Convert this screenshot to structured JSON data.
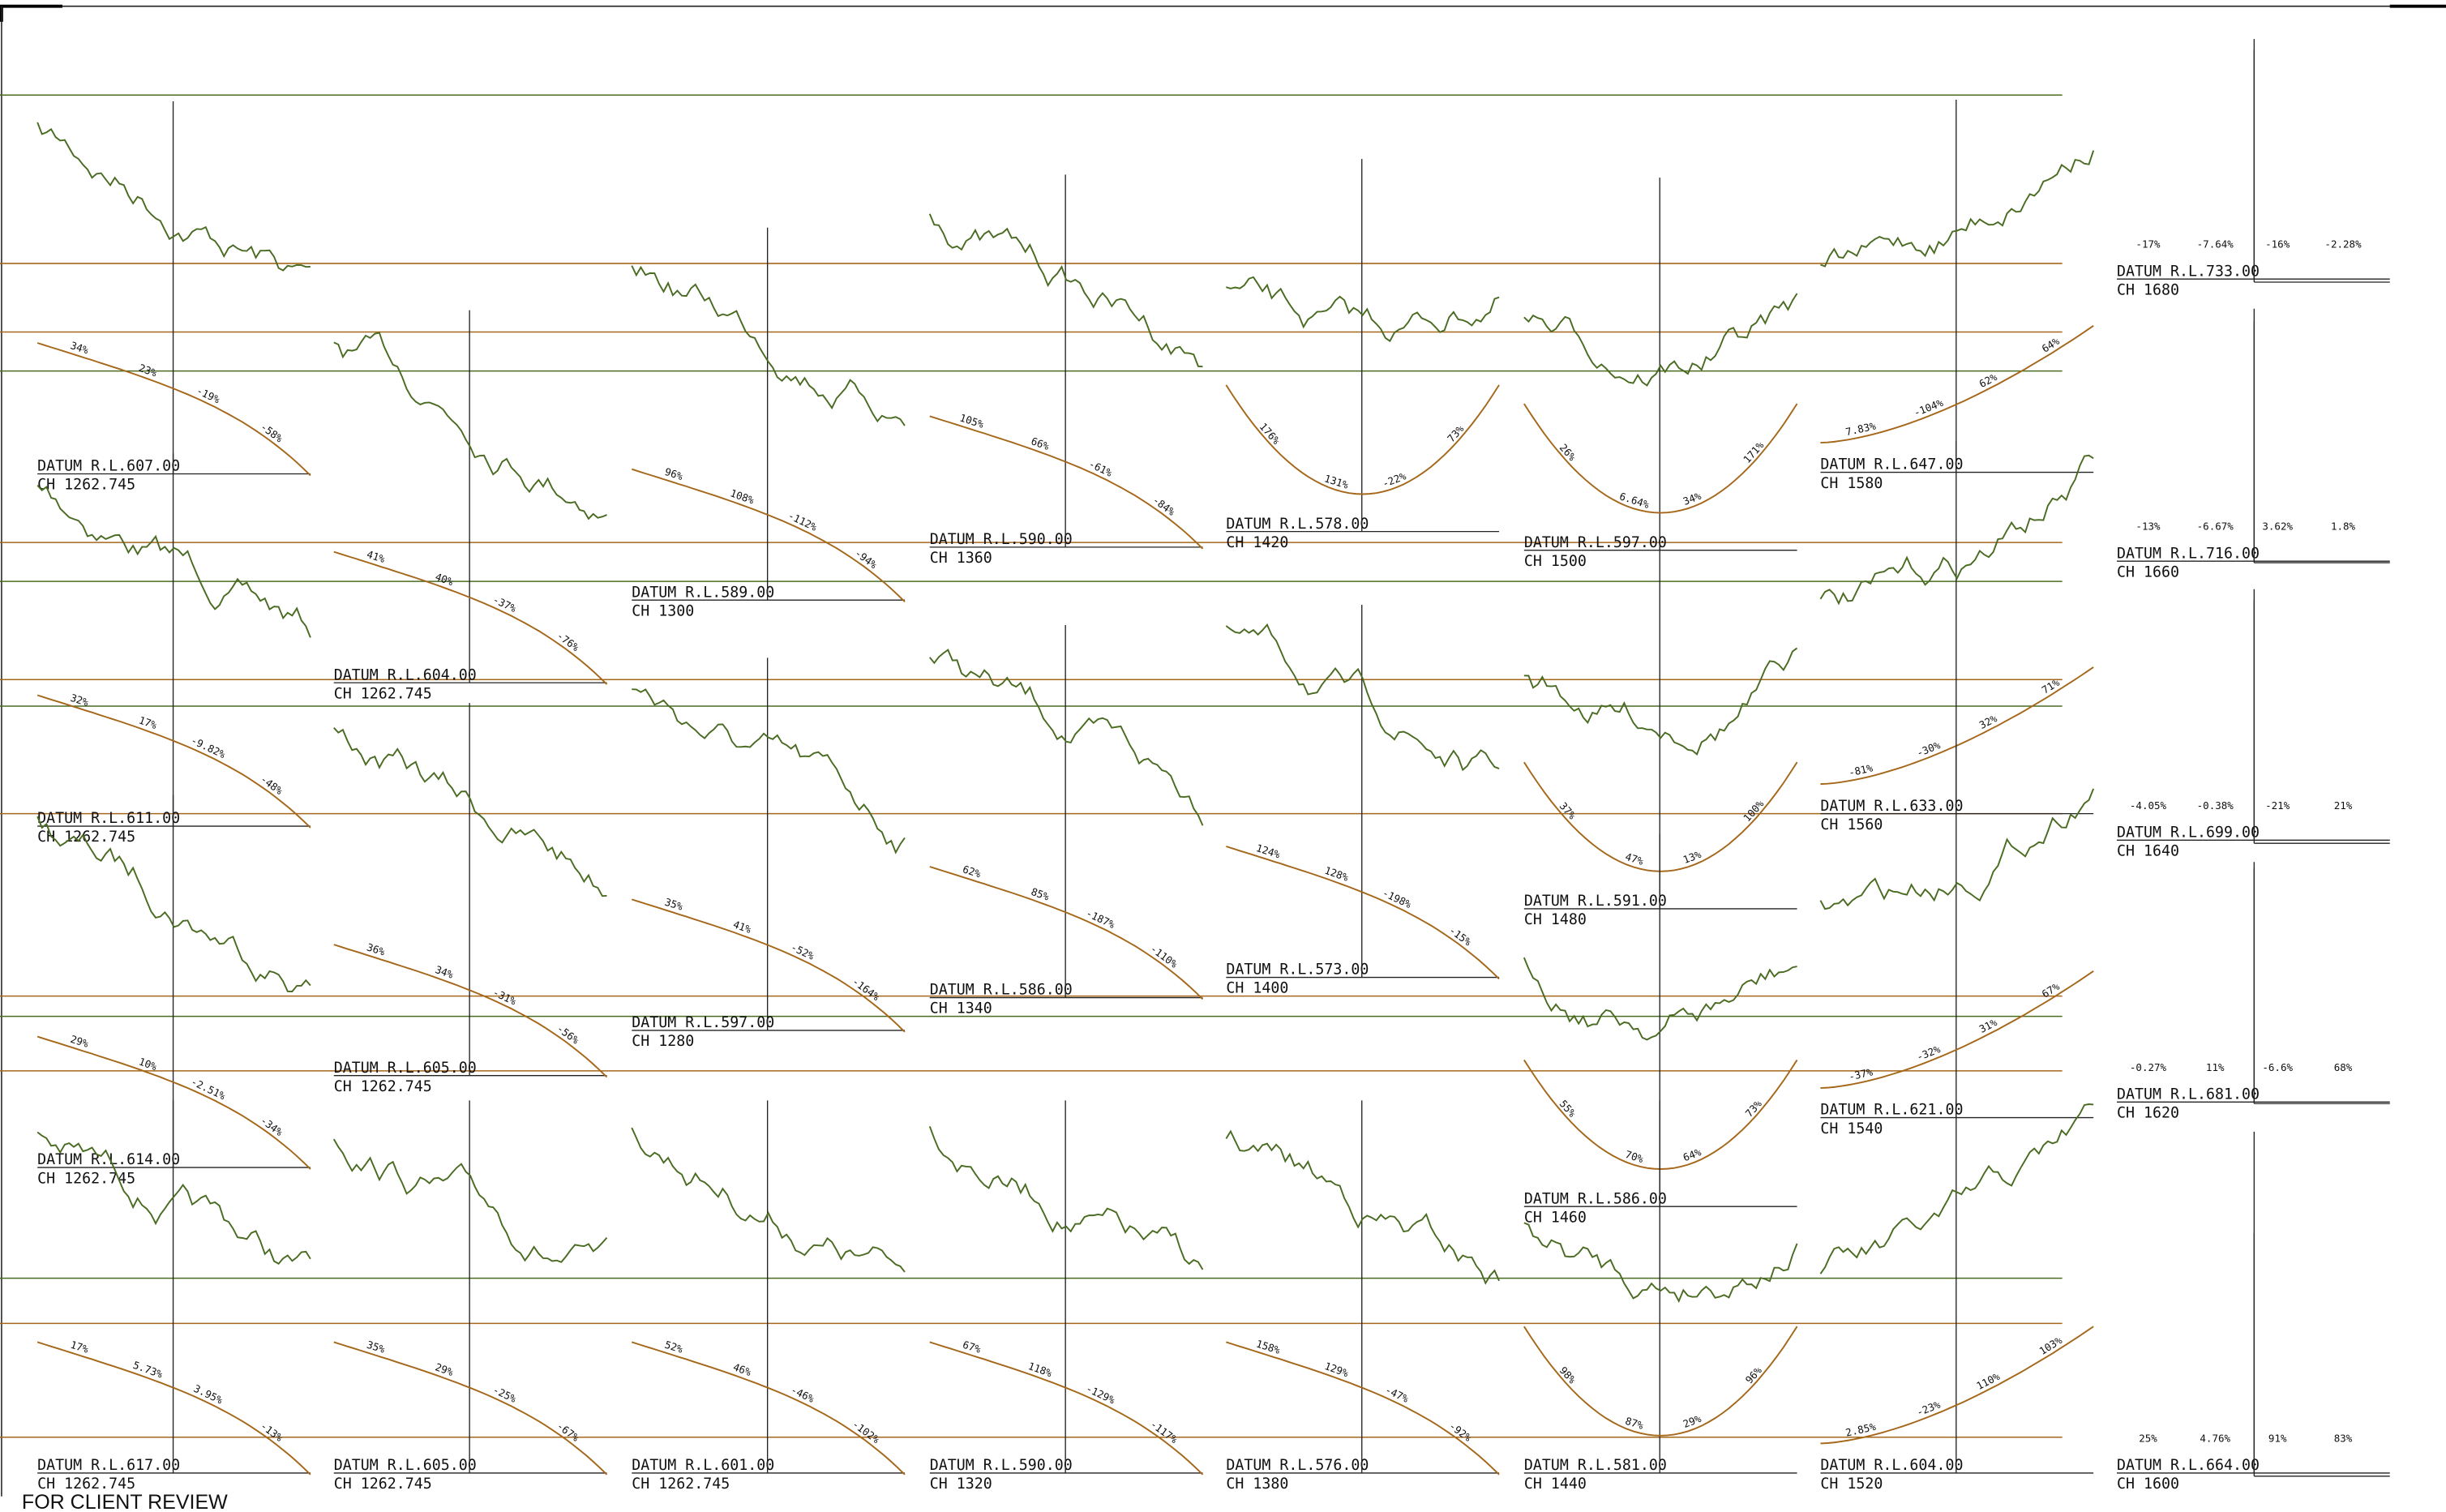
{
  "sections": [
    {
      "datum": "DATUM R.L.607.00",
      "ch": "CH 1262.745",
      "grades": [
        "34%",
        "23%",
        "-19%",
        "-58%"
      ]
    },
    {
      "datum": "DATUM R.L.611.00",
      "ch": "CH 1262.745",
      "grades": [
        "32%",
        "17%",
        "-9.82%",
        "-48%"
      ]
    },
    {
      "datum": "DATUM R.L.614.00",
      "ch": "CH 1262.745",
      "grades": [
        "29%",
        "10%",
        "-2.51%",
        "-34%"
      ]
    },
    {
      "datum": "DATUM R.L.617.00",
      "ch": "CH 1262.745",
      "grades": [
        "17%",
        "5.73%",
        "3.95%",
        "-13%"
      ]
    },
    {
      "datum": "DATUM R.L.604.00",
      "ch": "CH 1262.745",
      "grades": [
        "41%",
        "40%",
        "-37%",
        "-76%"
      ]
    },
    {
      "datum": "DATUM R.L.605.00",
      "ch": "CH 1262.745",
      "grades": [
        "36%",
        "34%",
        "-31%",
        "-56%"
      ]
    },
    {
      "datum": "DATUM R.L.605.00",
      "ch": "CH 1262.745",
      "grades": [
        "35%",
        "29%",
        "-25%",
        "-67%"
      ]
    },
    {
      "datum": "DATUM R.L.589.00",
      "ch": "CH 1300",
      "grades": [
        "96%",
        "108%",
        "-112%",
        "-94%"
      ]
    },
    {
      "datum": "DATUM R.L.597.00",
      "ch": "CH 1280",
      "grades": [
        "35%",
        "41%",
        "-52%",
        "-164%"
      ]
    },
    {
      "datum": "DATUM R.L.601.00",
      "ch": "CH 1262.745",
      "grades": [
        "52%",
        "46%",
        "-46%",
        "-102%"
      ]
    },
    {
      "datum": "DATUM R.L.590.00",
      "ch": "CH 1360",
      "grades": [
        "105%",
        "66%",
        "-61%",
        "-84%"
      ]
    },
    {
      "datum": "DATUM R.L.586.00",
      "ch": "CH 1340",
      "grades": [
        "62%",
        "85%",
        "-187%",
        "-110%"
      ]
    },
    {
      "datum": "DATUM R.L.590.00",
      "ch": "CH 1320",
      "grades": [
        "67%",
        "118%",
        "-129%",
        "-117%"
      ]
    },
    {
      "datum": "DATUM R.L.578.00",
      "ch": "CH 1420",
      "grades": [
        "176%",
        "131%",
        "-22%",
        "73%"
      ]
    },
    {
      "datum": "DATUM R.L.573.00",
      "ch": "CH 1400",
      "grades": [
        "124%",
        "128%",
        "-198%",
        "-15%"
      ]
    },
    {
      "datum": "DATUM R.L.576.00",
      "ch": "CH 1380",
      "grades": [
        "158%",
        "129%",
        "-47%",
        "-92%"
      ]
    },
    {
      "datum": "DATUM R.L.597.00",
      "ch": "CH 1500",
      "grades": [
        "26%",
        "6.64%",
        "34%",
        "171%"
      ]
    },
    {
      "datum": "DATUM R.L.591.00",
      "ch": "CH 1480",
      "grades": [
        "37%",
        "47%",
        "13%",
        "100%"
      ]
    },
    {
      "datum": "DATUM R.L.586.00",
      "ch": "CH 1460",
      "grades": [
        "55%",
        "70%",
        "64%",
        "73%"
      ]
    },
    {
      "datum": "DATUM R.L.581.00",
      "ch": "CH 1440",
      "grades": [
        "98%",
        "87%",
        "29%",
        "96%"
      ]
    },
    {
      "datum": "DATUM R.L.647.00",
      "ch": "CH 1580",
      "grades": [
        "7.83%",
        "-104%",
        "62%",
        "64%"
      ]
    },
    {
      "datum": "DATUM R.L.633.00",
      "ch": "CH 1560",
      "grades": [
        "-81%",
        "-30%",
        "32%",
        "71%"
      ]
    },
    {
      "datum": "DATUM R.L.621.00",
      "ch": "CH 1540",
      "grades": [
        "-37%",
        "-32%",
        "31%",
        "67%"
      ]
    },
    {
      "datum": "DATUM R.L.604.00",
      "ch": "CH 1520",
      "grades": [
        "2.85%",
        "-23%",
        "110%",
        "103%"
      ]
    },
    {
      "datum": "DATUM R.L.733.00",
      "ch": "CH 1680",
      "grades": [
        "-17%",
        "-7.64%",
        "-16%",
        "-2.28%"
      ]
    },
    {
      "datum": "DATUM R.L.716.00",
      "ch": "CH 1660",
      "grades": [
        "-13%",
        "-6.67%",
        "3.62%",
        "1.8%"
      ]
    },
    {
      "datum": "DATUM R.L.699.00",
      "ch": "CH 1640",
      "grades": [
        "-4.05%",
        "-0.38%",
        "-21%",
        "21%"
      ]
    },
    {
      "datum": "DATUM R.L.681.00",
      "ch": "CH 1620",
      "grades": [
        "-0.27%",
        "11%",
        "-6.6%",
        "68%"
      ]
    },
    {
      "datum": "DATUM R.L.664.00",
      "ch": "CH 1600",
      "grades": [
        "25%",
        "4.76%",
        "91%",
        "83%"
      ]
    }
  ],
  "note": "FOR CLIENT REVIEW"
}
